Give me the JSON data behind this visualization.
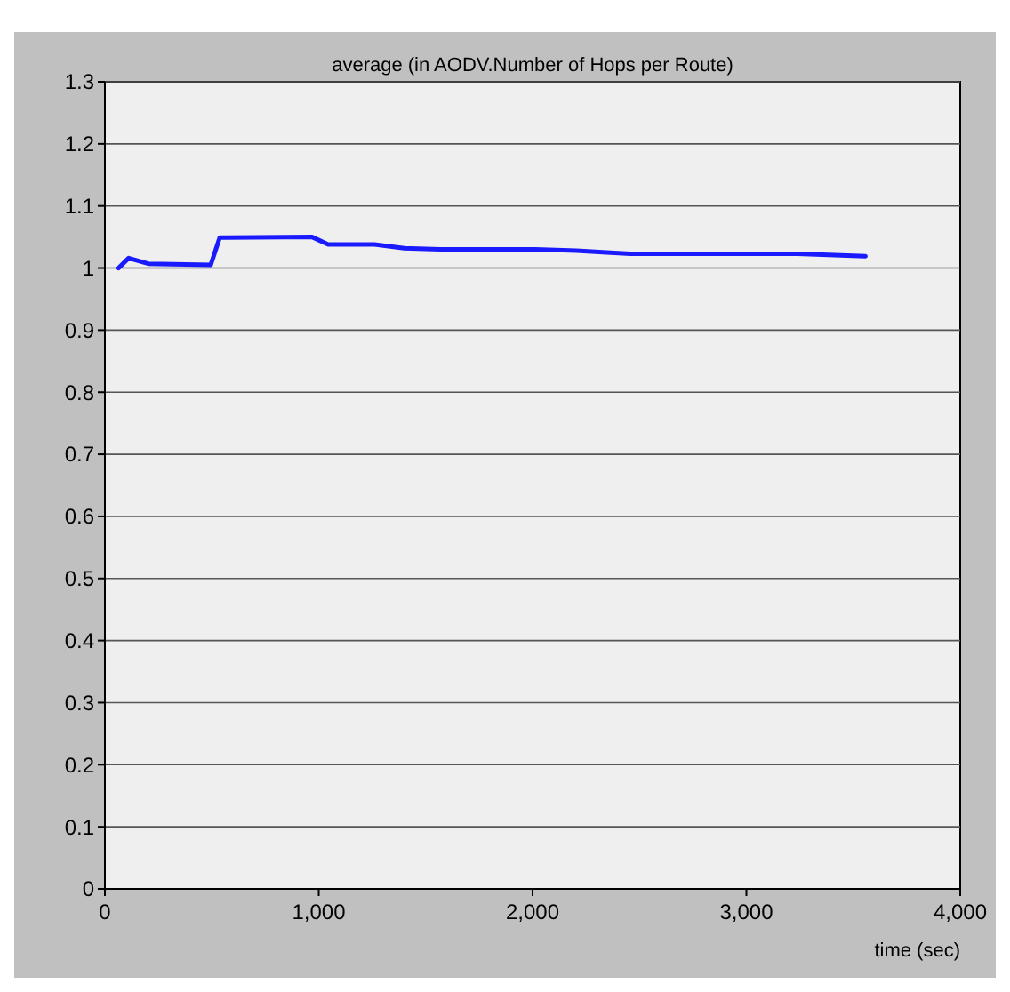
{
  "chart_data": {
    "type": "line",
    "title": "average (in AODV.Number of Hops per Route)",
    "xlabel": "time (sec)",
    "x": [
      64,
      111,
      203,
      495,
      537,
      969,
      1044,
      1261,
      1400,
      1567,
      2012,
      2205,
      2347,
      2457,
      3239,
      3557
    ],
    "series": [
      {
        "color": "#1a1aff",
        "values": [
          1.0,
          1.016,
          1.007,
          1.005,
          1.049,
          1.05,
          1.038,
          1.038,
          1.032,
          1.03,
          1.03,
          1.028,
          1.025,
          1.023,
          1.023,
          1.019
        ]
      }
    ],
    "xlim": [
      0,
      4000
    ],
    "ylim": [
      0,
      1.3
    ],
    "xticks": [
      0,
      {
        "value": 1000,
        "label": "1,000"
      },
      {
        "value": 2000,
        "label": "2,000"
      },
      {
        "value": 3000,
        "label": "3,000"
      },
      {
        "value": 4000,
        "label": "4,000"
      }
    ],
    "yticks": [
      0,
      0.1,
      0.2,
      0.3,
      0.4,
      0.5,
      0.6,
      0.7,
      0.8,
      0.9,
      1,
      1.1,
      1.2,
      1.3
    ],
    "grid": "y",
    "line_style": "solid",
    "marker": "none"
  }
}
